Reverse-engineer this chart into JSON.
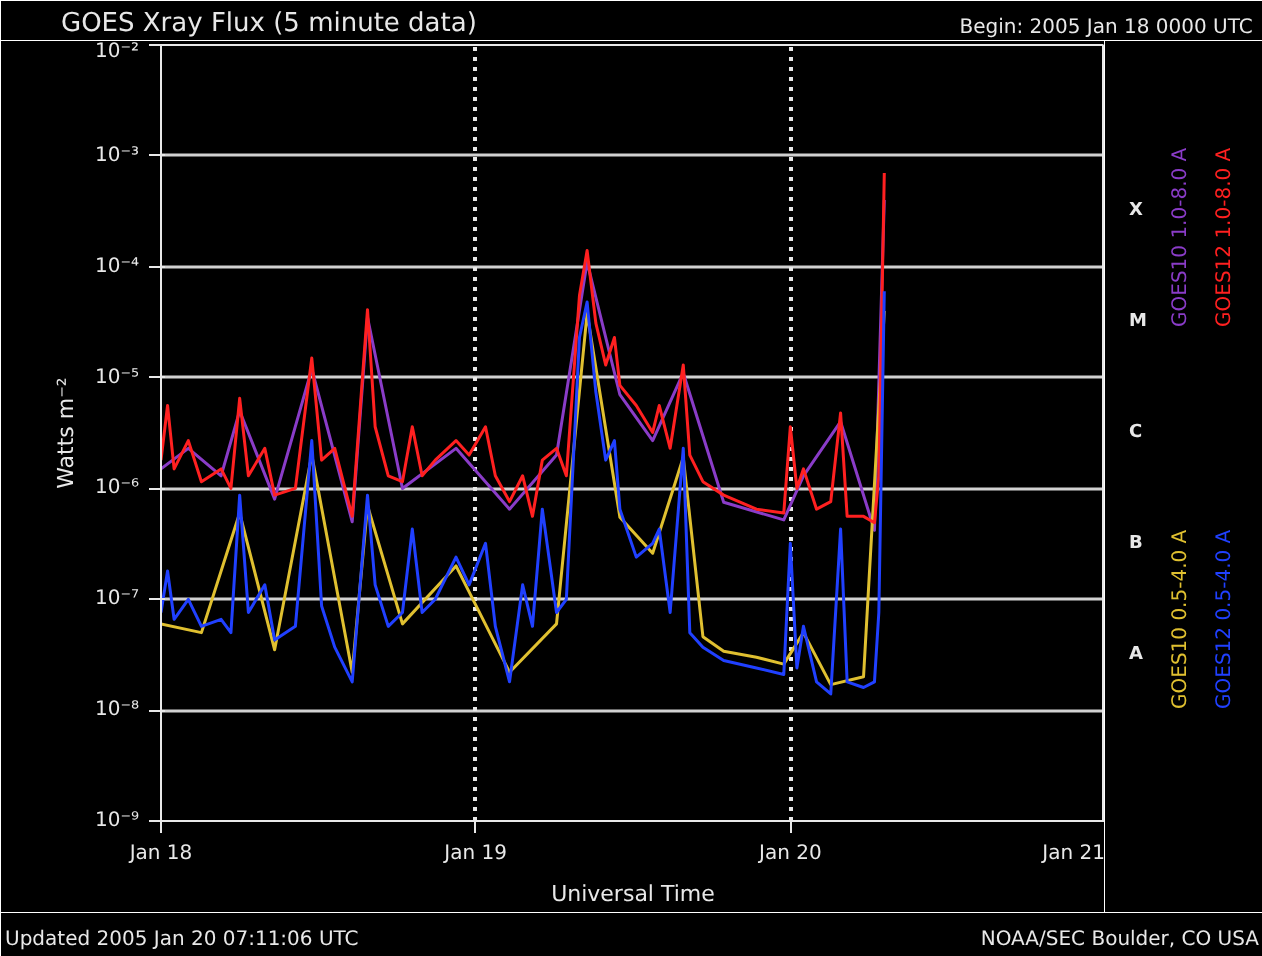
{
  "chart_data": {
    "type": "line",
    "title": "GOES Xray Flux (5 minute data)",
    "subtitle": "Begin:  2005 Jan 18 0000 UTC",
    "xlabel": "Universal Time",
    "ylabel": "Watts m⁻²",
    "x": [
      "2005-01-18T00:00",
      "2005-01-18T00:30",
      "2005-01-18T01:00",
      "2005-01-18T02:05",
      "2005-01-18T03:05",
      "2005-01-18T04:35",
      "2005-01-18T05:20",
      "2005-01-18T06:00",
      "2005-01-18T06:40",
      "2005-01-18T07:55",
      "2005-01-18T08:40",
      "2005-01-18T10:15",
      "2005-01-18T11:30",
      "2005-01-18T12:15",
      "2005-01-18T13:15",
      "2005-01-18T14:35",
      "2005-01-18T15:45",
      "2005-01-18T16:20",
      "2005-01-18T17:20",
      "2005-01-18T18:25",
      "2005-01-18T19:10",
      "2005-01-18T19:55",
      "2005-01-18T20:55",
      "2005-01-18T22:30",
      "2005-01-18T23:30",
      "2005-01-19T00:45",
      "2005-01-19T01:30",
      "2005-01-19T02:35",
      "2005-01-19T03:35",
      "2005-01-19T04:20",
      "2005-01-19T05:05",
      "2005-01-19T06:10",
      "2005-01-19T06:55",
      "2005-01-19T07:55",
      "2005-01-19T08:30",
      "2005-01-19T09:10",
      "2005-01-19T09:55",
      "2005-01-19T10:35",
      "2005-01-19T11:00",
      "2005-01-19T12:15",
      "2005-01-19T13:30",
      "2005-01-19T14:00",
      "2005-01-19T14:50",
      "2005-01-19T15:50",
      "2005-01-19T16:20",
      "2005-01-19T17:20",
      "2005-01-19T18:55",
      "2005-01-19T21:25",
      "2005-01-19T23:30",
      "2005-01-20T00:00",
      "2005-01-20T00:30",
      "2005-01-20T01:00",
      "2005-01-20T02:00",
      "2005-01-20T03:05",
      "2005-01-20T03:50",
      "2005-01-20T04:20",
      "2005-01-20T05:35",
      "2005-01-20T06:25",
      "2005-01-20T06:45",
      "2005-01-20T07:10"
    ],
    "series": [
      {
        "name": "GOES10 1.0-8.0 A",
        "color": "#8a3cc8",
        "x": [
          "2005-01-18T00:00",
          "2005-01-18T02:05",
          "2005-01-18T04:35",
          "2005-01-18T06:00",
          "2005-01-18T08:40",
          "2005-01-18T11:30",
          "2005-01-18T14:35",
          "2005-01-18T15:45",
          "2005-01-18T18:25",
          "2005-01-18T22:30",
          "2005-01-19T02:35",
          "2005-01-19T06:10",
          "2005-01-19T08:30",
          "2005-01-19T11:00",
          "2005-01-19T13:30",
          "2005-01-19T15:50",
          "2005-01-19T18:55",
          "2005-01-19T23:30",
          "2005-01-20T01:00",
          "2005-01-20T03:50",
          "2005-01-20T06:25",
          "2005-01-20T07:10"
        ],
        "values": [
          1.5e-06,
          2.3e-06,
          1.3e-06,
          5e-06,
          8e-07,
          1.2e-05,
          5e-07,
          3.5e-05,
          1e-06,
          2.3e-06,
          6.5e-07,
          2e-06,
          0.00011,
          7e-06,
          2.7e-06,
          1.1e-05,
          7.5e-07,
          5.2e-07,
          1.3e-06,
          4e-06,
          4.2e-07,
          0.0004
        ]
      },
      {
        "name": "GOES10 0.5-4.0 A",
        "color": "#e0c030",
        "x": [
          "2005-01-18T00:00",
          "2005-01-18T03:05",
          "2005-01-18T06:00",
          "2005-01-18T08:40",
          "2005-01-18T11:30",
          "2005-01-18T14:35",
          "2005-01-18T15:45",
          "2005-01-18T18:25",
          "2005-01-18T22:30",
          "2005-01-19T02:35",
          "2005-01-19T06:10",
          "2005-01-19T08:30",
          "2005-01-19T11:00",
          "2005-01-19T13:30",
          "2005-01-19T15:50",
          "2005-01-19T17:20",
          "2005-01-19T18:55",
          "2005-01-19T21:25",
          "2005-01-19T23:30",
          "2005-01-20T01:00",
          "2005-01-20T03:05",
          "2005-01-20T05:35",
          "2005-01-20T07:10"
        ],
        "values": [
          6e-08,
          5e-08,
          6e-07,
          3.5e-08,
          2e-06,
          2.2e-08,
          7e-07,
          6e-08,
          2e-07,
          2.2e-08,
          6e-08,
          3.8e-05,
          5.5e-07,
          2.6e-07,
          1.9e-06,
          4.6e-08,
          3.4e-08,
          3e-08,
          2.6e-08,
          5e-08,
          1.7e-08,
          2e-08,
          4e-05
        ]
      },
      {
        "name": "GOES12 1.0-8.0 A",
        "color": "#ff2020",
        "values": [
          1.8e-06,
          5.6e-06,
          1.5e-06,
          2.7e-06,
          1.15e-06,
          1.5e-06,
          1e-06,
          6.5e-06,
          1.3e-06,
          2.3e-06,
          8.7e-07,
          1e-06,
          1.5e-05,
          1.8e-06,
          2.3e-06,
          5.6e-07,
          4.1e-05,
          3.6e-06,
          1.3e-06,
          1.15e-06,
          3.6e-06,
          1.3e-06,
          1.8e-06,
          2.7e-06,
          2e-06,
          3.6e-06,
          1.3e-06,
          7.6e-07,
          1.3e-06,
          5.6e-07,
          1.8e-06,
          2.3e-06,
          1.3e-06,
          5.5e-05,
          0.00014,
          3.1e-05,
          1.3e-05,
          2.3e-05,
          8.5e-06,
          5.6e-06,
          3.2e-06,
          5.6e-06,
          2.3e-06,
          1.3e-05,
          2e-06,
          1.15e-06,
          8.7e-07,
          6.5e-07,
          6e-07,
          3.6e-06,
          1e-06,
          1.5e-06,
          6.5e-07,
          7.6e-07,
          4.8e-06,
          5.6e-07,
          5.6e-07,
          4.9e-07,
          1.3e-06,
          0.0007
        ]
      },
      {
        "name": "GOES12 0.5-4.0 A",
        "color": "#2040ff",
        "values": [
          7.6e-08,
          1.8e-07,
          6.6e-08,
          1e-07,
          5.7e-08,
          6.6e-08,
          5e-08,
          8.7e-07,
          7.6e-08,
          1.35e-07,
          4.3e-08,
          5.7e-08,
          2.7e-06,
          8.7e-08,
          3.7e-08,
          1.8e-08,
          8.7e-07,
          1.35e-07,
          5.7e-08,
          7.6e-08,
          4.3e-07,
          7.6e-08,
          1e-07,
          2.4e-07,
          1.35e-07,
          3.2e-07,
          5.7e-08,
          1.8e-08,
          1.35e-07,
          5.7e-08,
          6.5e-07,
          7.6e-08,
          1e-07,
          2.3e-05,
          4.8e-05,
          7.4e-06,
          1.8e-06,
          2.7e-06,
          6.5e-07,
          2.4e-07,
          3.2e-07,
          4.3e-07,
          7.6e-08,
          2.3e-06,
          5e-08,
          3.7e-08,
          2.8e-08,
          2.4e-08,
          2.1e-08,
          3.2e-07,
          2.4e-08,
          5.7e-08,
          1.8e-08,
          1.4e-08,
          4.3e-07,
          1.8e-08,
          1.6e-08,
          1.8e-08,
          7.6e-08,
          6e-05
        ]
      }
    ],
    "log": "y",
    "xlim": [
      "2005-01-18",
      "2005-01-21"
    ],
    "ylim": [
      1e-09,
      0.01
    ],
    "xticks": [
      {
        "value": "2005-01-18",
        "label": "Jan 18"
      },
      {
        "value": "2005-01-19",
        "label": "Jan 19"
      },
      {
        "value": "2005-01-20",
        "label": "Jan 20"
      },
      {
        "value": "2005-01-21",
        "label": "Jan 21"
      }
    ],
    "yticks": [
      {
        "value": 1e-09,
        "label": "10⁻⁹"
      },
      {
        "value": 1e-08,
        "label": "10⁻⁸"
      },
      {
        "value": 1e-07,
        "label": "10⁻⁷"
      },
      {
        "value": 1e-06,
        "label": "10⁻⁶"
      },
      {
        "value": 1e-05,
        "label": "10⁻⁵"
      },
      {
        "value": 0.0001,
        "label": "10⁻⁴"
      },
      {
        "value": 0.001,
        "label": "10⁻³"
      },
      {
        "value": 0.01,
        "label": "10⁻²"
      }
    ],
    "grid": true,
    "annotations": [
      "A",
      "B",
      "C",
      "M",
      "X",
      "Updated 2005 Jan 20 07:11:06 UTC",
      "NOAA/SEC Boulder, CO USA"
    ]
  }
}
